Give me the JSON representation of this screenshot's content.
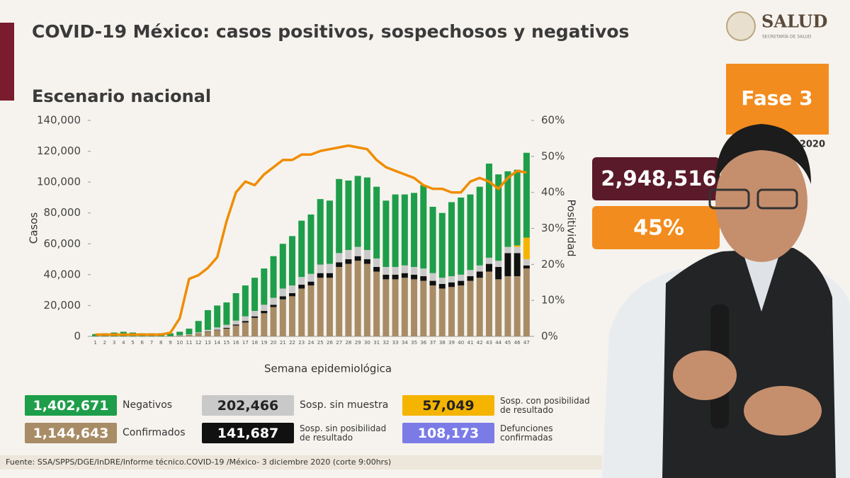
{
  "chart_data": {
    "type": "bar",
    "stacked": true,
    "title": "COVID-19 México: casos positivos, sospechosos y negativos",
    "subtitle": "Escenario nacional",
    "x_label": "Semana epidemiológica",
    "y_label": "Casos",
    "y2_label": "Positividad",
    "categories": [
      "1",
      "2",
      "3",
      "4",
      "5",
      "6",
      "7",
      "8",
      "9",
      "10",
      "11",
      "12",
      "13",
      "14",
      "15",
      "16",
      "17",
      "18",
      "19",
      "20",
      "21",
      "22",
      "23",
      "24",
      "25",
      "26",
      "27",
      "28",
      "29",
      "30",
      "31",
      "32",
      "33",
      "34",
      "35",
      "36",
      "37",
      "38",
      "39",
      "40",
      "41",
      "42",
      "43",
      "44",
      "45",
      "46",
      "47"
    ],
    "ylim": [
      0,
      140000
    ],
    "yticks": [
      0,
      {
        "value": 20000,
        "label": "20,000"
      },
      {
        "value": 40000,
        "label": "40,000"
      },
      {
        "value": 60000,
        "label": "60,000"
      },
      {
        "value": 80000,
        "label": "80,000"
      },
      {
        "value": 100000,
        "label": "100,000"
      },
      {
        "value": 120000,
        "label": "120,000"
      },
      {
        "value": 140000,
        "label": "140,000"
      }
    ],
    "y2lim": [
      0,
      60
    ],
    "y2ticks": [
      {
        "value": 0,
        "label": "0%"
      },
      {
        "value": 10,
        "label": "10%"
      },
      {
        "value": 20,
        "label": "20%"
      },
      {
        "value": 30,
        "label": "30%"
      },
      {
        "value": 40,
        "label": "40%"
      },
      {
        "value": 50,
        "label": "50%"
      },
      {
        "value": 60,
        "label": "60%"
      }
    ],
    "series": [
      {
        "name": "Confirmados",
        "total": "1,144,643",
        "color": "#a88c66",
        "values": [
          0,
          0,
          0,
          0,
          0,
          0,
          0,
          0,
          200,
          500,
          1000,
          2000,
          3000,
          4000,
          5000,
          7000,
          9000,
          12000,
          15000,
          19000,
          24000,
          26000,
          31000,
          33000,
          38000,
          38000,
          45000,
          47000,
          49000,
          47000,
          42000,
          37000,
          37000,
          38000,
          37000,
          36000,
          33000,
          31000,
          32000,
          33000,
          36000,
          38000,
          42000,
          37000,
          39000,
          39000,
          44000
        ]
      },
      {
        "name": "Sosp. sin posibilidad de resultado",
        "total": "141,687",
        "color": "#111111",
        "values": [
          0,
          0,
          0,
          0,
          0,
          0,
          0,
          0,
          0,
          0,
          0,
          100,
          200,
          300,
          500,
          700,
          1000,
          1000,
          1500,
          1500,
          2000,
          2000,
          2500,
          2500,
          3000,
          3000,
          3000,
          3000,
          3000,
          3000,
          3000,
          3000,
          3000,
          3000,
          3000,
          3000,
          3000,
          3000,
          3000,
          3000,
          3000,
          4000,
          5000,
          8000,
          15000,
          15000,
          2000
        ]
      },
      {
        "name": "Sosp. sin muestra",
        "total": "202,466",
        "color": "#c9c9c9",
        "values": [
          0,
          0,
          0,
          0,
          0,
          0,
          0,
          0,
          0,
          200,
          300,
          500,
          1000,
          1500,
          2000,
          2500,
          3000,
          3500,
          4000,
          4500,
          5000,
          5000,
          5000,
          5000,
          5500,
          6000,
          6000,
          6000,
          6000,
          6000,
          5500,
          5000,
          5000,
          5000,
          5000,
          5000,
          5000,
          4000,
          4000,
          4000,
          4000,
          4000,
          4000,
          4000,
          4000,
          4000,
          4000
        ]
      },
      {
        "name": "Sosp. con posibilidad de resultado",
        "total": "57,049",
        "color": "#f5b400",
        "values": [
          0,
          0,
          0,
          0,
          0,
          0,
          0,
          0,
          0,
          0,
          0,
          0,
          0,
          0,
          0,
          0,
          0,
          0,
          0,
          0,
          0,
          0,
          0,
          0,
          0,
          0,
          0,
          0,
          0,
          0,
          0,
          0,
          0,
          0,
          0,
          0,
          0,
          0,
          0,
          0,
          0,
          0,
          0,
          0,
          0,
          1000,
          14000
        ]
      },
      {
        "name": "Negativos",
        "total": "1,402,671",
        "color": "#1e9e4a",
        "values": [
          1500,
          2000,
          2500,
          3000,
          2500,
          2000,
          2000,
          2000,
          1800,
          2300,
          3700,
          7400,
          12800,
          14200,
          14500,
          17800,
          20000,
          21500,
          23500,
          27000,
          29000,
          32000,
          36500,
          38500,
          42500,
          41000,
          48000,
          45000,
          46000,
          47000,
          46500,
          43000,
          47000,
          46000,
          48000,
          54000,
          43000,
          42000,
          48000,
          50000,
          49000,
          51000,
          61000,
          56000,
          49000,
          49000,
          55000
        ]
      },
      {
        "type": "line",
        "axis": "y2",
        "color": "#f08c00",
        "values": [
          0.5,
          0.5,
          0.5,
          0.5,
          0.5,
          0.5,
          0.5,
          0.5,
          1,
          5,
          16,
          17,
          19,
          22,
          32,
          40,
          43,
          42,
          45,
          47,
          49,
          49,
          50.5,
          50.5,
          51.5,
          52,
          52.5,
          53,
          52.5,
          52,
          49,
          47,
          46,
          45,
          44,
          42,
          41,
          41,
          40,
          40,
          43,
          44,
          43,
          41,
          44,
          46,
          45.5
        ]
      }
    ],
    "extra_legend": {
      "name": "Defunciones confirmadas",
      "total": "108,173",
      "color": "#7b7be8"
    }
  },
  "header": {
    "logo": "SALUD",
    "logo_subtitle": "SECRETARÍA DE SALUD"
  },
  "panel": {
    "phase": "Fase 3",
    "year": "2020",
    "total_tests": "2,948,516",
    "positivity": "45%"
  },
  "source": "Fuente: SSA/SPPS/DGE/InDRE/Informe técnico.COVID-19 /México- 3 diciembre 2020 (corte 9:00hrs)"
}
